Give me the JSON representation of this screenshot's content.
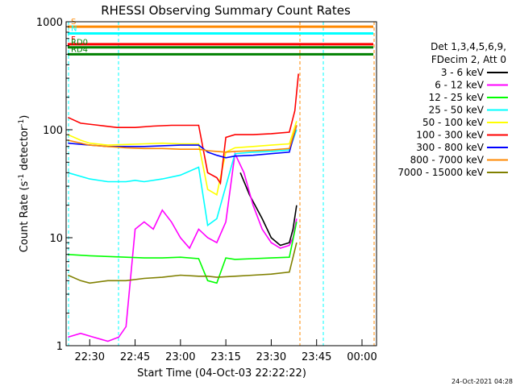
{
  "chart_data": {
    "type": "line",
    "title": "RHESSI Observing Summary Count Rates",
    "xlabel": "Start Time (04-Oct-03 22:22:22)",
    "ylabel_parts": [
      "Count Rate (s",
      "-1",
      " detector",
      "-1",
      ")"
    ],
    "yscale": "log",
    "ylim": [
      1,
      1000
    ],
    "xlim_min": [
      22.37,
      24.08
    ],
    "y_ticks": [
      {
        "v": 1,
        "label": "1"
      },
      {
        "v": 10,
        "label": "10"
      },
      {
        "v": 100,
        "label": "100"
      },
      {
        "v": 1000,
        "label": "1000"
      }
    ],
    "x_ticks": [
      {
        "t": 22.5,
        "label": "22:30"
      },
      {
        "t": 22.75,
        "label": "22:45"
      },
      {
        "t": 23.0,
        "label": "23:00"
      },
      {
        "t": 23.25,
        "label": "23:15"
      },
      {
        "t": 23.5,
        "label": "23:30"
      },
      {
        "t": 23.75,
        "label": "23:45"
      },
      {
        "t": 24.0,
        "label": "00:00"
      }
    ],
    "legend_header": [
      "Det 1,3,4,5,6,9,",
      "FDecim 2, Att 0"
    ],
    "series": [
      {
        "name": "3 - 6 keV",
        "color": "#000000",
        "t": [
          23.33,
          23.38,
          23.45,
          23.5,
          23.55,
          23.6,
          23.62,
          23.64
        ],
        "v": [
          40,
          25,
          15,
          10,
          8.5,
          9,
          12,
          20
        ]
      },
      {
        "name": "6 - 12 keV",
        "color": "#ff00ff",
        "t": [
          22.38,
          22.45,
          22.52,
          22.6,
          22.66,
          22.7,
          22.75,
          22.8,
          22.85,
          22.9,
          22.95,
          23.0,
          23.05,
          23.1,
          23.15,
          23.2,
          23.25,
          23.3,
          23.35,
          23.4,
          23.45,
          23.5,
          23.55,
          23.6,
          23.62,
          23.64
        ],
        "v": [
          1.2,
          1.3,
          1.2,
          1.1,
          1.2,
          1.5,
          12,
          14,
          12,
          18,
          14,
          10,
          8,
          12,
          10,
          9,
          14,
          60,
          40,
          20,
          12,
          9,
          8,
          8.5,
          10,
          15
        ]
      },
      {
        "name": "12 - 25 keV",
        "color": "#00ff00",
        "t": [
          22.38,
          22.5,
          22.6,
          22.7,
          22.8,
          22.9,
          23.0,
          23.1,
          23.15,
          23.2,
          23.25,
          23.3,
          23.4,
          23.5,
          23.6,
          23.64
        ],
        "v": [
          7,
          6.8,
          6.7,
          6.6,
          6.5,
          6.5,
          6.6,
          6.4,
          4,
          3.8,
          6.5,
          6.3,
          6.4,
          6.5,
          6.6,
          14
        ]
      },
      {
        "name": "25 - 50 keV",
        "color": "#00ffff",
        "t": [
          22.38,
          22.5,
          22.6,
          22.7,
          22.75,
          22.8,
          22.9,
          23.0,
          23.1,
          23.15,
          23.2,
          23.25,
          23.3,
          23.4,
          23.5,
          23.6,
          23.64
        ],
        "v": [
          40,
          35,
          33,
          33,
          34,
          33,
          35,
          38,
          45,
          13,
          15,
          30,
          60,
          62,
          63,
          65,
          100
        ]
      },
      {
        "name": "50 - 100 keV",
        "color": "#ffff00",
        "t": [
          22.38,
          22.45,
          22.5,
          22.6,
          22.7,
          22.8,
          22.9,
          23.0,
          23.1,
          23.15,
          23.2,
          23.25,
          23.3,
          23.4,
          23.5,
          23.6,
          23.64
        ],
        "v": [
          90,
          80,
          75,
          72,
          73,
          74,
          75,
          74,
          74,
          28,
          25,
          62,
          68,
          70,
          72,
          74,
          120
        ]
      },
      {
        "name": "100 - 300 keV",
        "color": "#ff0000",
        "t": [
          22.38,
          22.45,
          22.55,
          22.65,
          22.75,
          22.85,
          22.95,
          23.05,
          23.1,
          23.15,
          23.2,
          23.22,
          23.25,
          23.3,
          23.4,
          23.5,
          23.6,
          23.63,
          23.65
        ],
        "v": [
          130,
          115,
          110,
          105,
          105,
          108,
          110,
          110,
          110,
          40,
          36,
          32,
          85,
          90,
          90,
          92,
          95,
          150,
          330
        ]
      },
      {
        "name": "300 - 800 keV",
        "color": "#0000ff",
        "t": [
          22.38,
          22.5,
          22.6,
          22.7,
          22.8,
          22.9,
          23.0,
          23.1,
          23.15,
          23.2,
          23.25,
          23.3,
          23.4,
          23.5,
          23.6,
          23.64
        ],
        "v": [
          75,
          72,
          70,
          70,
          70,
          71,
          72,
          72,
          62,
          58,
          55,
          57,
          58,
          60,
          62,
          110
        ]
      },
      {
        "name": "800 - 7000 keV",
        "color": "#ff8800",
        "t": [
          22.38,
          22.5,
          22.6,
          22.7,
          22.8,
          22.9,
          23.0,
          23.1,
          23.15,
          23.2,
          23.25,
          23.3,
          23.4,
          23.5,
          23.6,
          23.64
        ],
        "v": [
          80,
          72,
          70,
          68,
          67,
          67,
          66,
          66,
          64,
          63,
          62,
          63,
          64,
          65,
          67,
          110
        ]
      },
      {
        "name": "7000 - 15000 keV",
        "color": "#808000",
        "t": [
          22.38,
          22.45,
          22.5,
          22.6,
          22.7,
          22.8,
          22.9,
          23.0,
          23.1,
          23.15,
          23.2,
          23.3,
          23.4,
          23.5,
          23.6,
          23.64
        ],
        "v": [
          4.5,
          4,
          3.8,
          4,
          4,
          4.2,
          4.3,
          4.5,
          4.4,
          4.4,
          4.3,
          4.4,
          4.5,
          4.6,
          4.8,
          9
        ]
      }
    ],
    "flags": [
      {
        "label": "S",
        "color": "#ff8800",
        "value": 900
      },
      {
        "label": "N",
        "color": "#00ffff",
        "value": 780
      },
      {
        "label": "F",
        "color": "#ff0000",
        "value": 620
      },
      {
        "label": "RD0",
        "color": "#008000",
        "value": 580
      },
      {
        "label": "RD4",
        "color": "#008000",
        "value": 500
      }
    ],
    "footer_timestamp": "24-Oct-2021 04:28"
  }
}
